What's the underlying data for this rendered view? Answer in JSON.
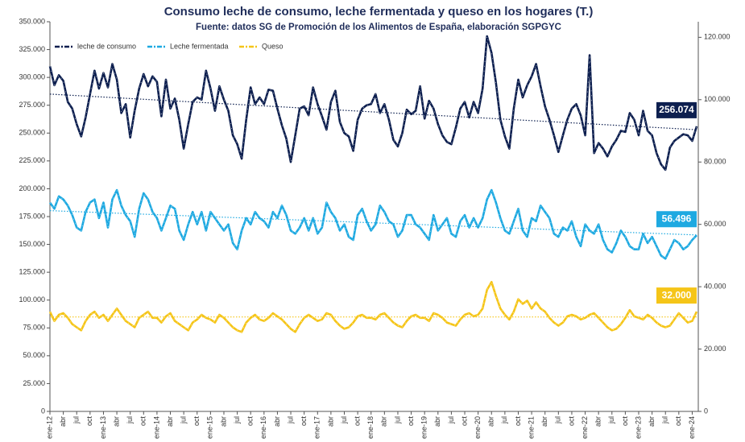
{
  "chart_data": {
    "type": "line",
    "title": "Consumo leche de consumo, leche fermentada y queso en los hogares (T.)",
    "subtitle": "Fuente: datos SG de Promoción de los Alimentos de España, elaboración SGPGYC",
    "categories": [
      "ene-12",
      null,
      null,
      "abr",
      null,
      null,
      "jul",
      null,
      null,
      "oct",
      null,
      null,
      "ene-13",
      null,
      null,
      "abr",
      null,
      null,
      "jul",
      null,
      null,
      "oct",
      null,
      null,
      "ene-14",
      null,
      null,
      "abr",
      null,
      null,
      "jul",
      null,
      null,
      "oct",
      null,
      null,
      "ene-15",
      null,
      null,
      "abr",
      null,
      null,
      "jul",
      null,
      null,
      "oct",
      null,
      null,
      "ene-16",
      null,
      null,
      "abr",
      null,
      null,
      "jul",
      null,
      null,
      "oct",
      null,
      null,
      "ene-17",
      null,
      null,
      "abr",
      null,
      null,
      "jul",
      null,
      null,
      "oct",
      null,
      null,
      "ene-18",
      null,
      null,
      "abr",
      null,
      null,
      "jul",
      null,
      null,
      "oct",
      null,
      null,
      "ene-19",
      null,
      null,
      "abr",
      null,
      null,
      "jul",
      null,
      null,
      "oct",
      null,
      null,
      "ene-20",
      null,
      null,
      "abr",
      null,
      null,
      "jul",
      null,
      null,
      "oct",
      null,
      null,
      "ene-21",
      null,
      null,
      "abr",
      null,
      null,
      "jul",
      null,
      null,
      "oct",
      null,
      null,
      "ene-22",
      null,
      null,
      "abr",
      null,
      null,
      "jul",
      null,
      null,
      "oct",
      null,
      null,
      "ene-23",
      null,
      null,
      "abr",
      null,
      null,
      "jul",
      null,
      null,
      "oct",
      null,
      null,
      "ene-24",
      null
    ],
    "ylim": [
      0,
      350000
    ],
    "yticks": [
      {
        "value": 0,
        "label": "0"
      },
      {
        "value": 25000,
        "label": "25.000"
      },
      {
        "value": 50000,
        "label": "50.000"
      },
      {
        "value": 75000,
        "label": "75.000"
      },
      {
        "value": 100000,
        "label": "100.000"
      },
      {
        "value": 125000,
        "label": "125.000"
      },
      {
        "value": 150000,
        "label": "150.000"
      },
      {
        "value": 175000,
        "label": "175.000"
      },
      {
        "value": 200000,
        "label": "200.000"
      },
      {
        "value": 225000,
        "label": "225.000"
      },
      {
        "value": 250000,
        "label": "250.000"
      },
      {
        "value": 275000,
        "label": "275.000"
      },
      {
        "value": 300000,
        "label": "300.000"
      },
      {
        "value": 325000,
        "label": "325.000"
      },
      {
        "value": 350000,
        "label": "350.000"
      }
    ],
    "y2lim": [
      0,
      125000
    ],
    "y2ticks": [
      {
        "value": 0,
        "label": "0"
      },
      {
        "value": 20000,
        "label": "20.000"
      },
      {
        "value": 40000,
        "label": "40.000"
      },
      {
        "value": 60000,
        "label": "60.000"
      },
      {
        "value": 80000,
        "label": "80.000"
      },
      {
        "value": 100000,
        "label": "100.000"
      },
      {
        "value": 120000,
        "label": "120.000"
      }
    ],
    "legend": "top-left",
    "series": [
      {
        "name": "leche de consumo",
        "color": "#0d1f4f",
        "axis": "y",
        "trend": [
          285000,
          253000
        ],
        "values": [
          310000,
          293000,
          302000,
          297000,
          278000,
          272000,
          258000,
          247000,
          264000,
          285000,
          306000,
          290000,
          304000,
          291000,
          312000,
          298000,
          268000,
          276000,
          246000,
          270000,
          290000,
          303000,
          292000,
          301000,
          296000,
          265000,
          298000,
          272000,
          281000,
          262000,
          236000,
          258000,
          278000,
          282000,
          280000,
          306000,
          290000,
          270000,
          292000,
          280000,
          270000,
          248000,
          240000,
          227000,
          262000,
          291000,
          276000,
          282000,
          276000,
          289000,
          288000,
          272000,
          257000,
          245000,
          224000,
          248000,
          272000,
          274000,
          266000,
          291000,
          276000,
          265000,
          253000,
          278000,
          288000,
          260000,
          250000,
          247000,
          234000,
          262000,
          272000,
          275000,
          276000,
          285000,
          268000,
          276000,
          262000,
          244000,
          238000,
          250000,
          271000,
          267000,
          270000,
          292000,
          263000,
          279000,
          272000,
          258000,
          248000,
          242000,
          240000,
          255000,
          272000,
          278000,
          264000,
          278000,
          268000,
          290000,
          337000,
          322000,
          295000,
          262000,
          247000,
          236000,
          272000,
          298000,
          282000,
          293000,
          301000,
          312000,
          292000,
          274000,
          262000,
          248000,
          233000,
          248000,
          262000,
          272000,
          276000,
          266000,
          248000,
          320000,
          232000,
          241000,
          236000,
          229000,
          238000,
          244000,
          252000,
          251000,
          268000,
          262000,
          248000,
          270000,
          252000,
          248000,
          232000,
          222000,
          217000,
          237000,
          243000,
          246000,
          249000,
          248000,
          243000,
          256074
        ],
        "value_labels": [
          null,
          null,
          null,
          null,
          null,
          null,
          null,
          null,
          null,
          null,
          null,
          null,
          null,
          null,
          null,
          null,
          null,
          null,
          null,
          null,
          null,
          null,
          null,
          null,
          null,
          null,
          null,
          null,
          null,
          null,
          null,
          null,
          null,
          null,
          null,
          null,
          null,
          null,
          null,
          null,
          null,
          null,
          null,
          null,
          null,
          null,
          null,
          null,
          null,
          null,
          null,
          null,
          null,
          null,
          null,
          null,
          null,
          null,
          null,
          null,
          null,
          null,
          null,
          null,
          null,
          null,
          null,
          null,
          null,
          null,
          null,
          null,
          null,
          null,
          null,
          null,
          null,
          null,
          null,
          null,
          null,
          null,
          null,
          null,
          null,
          null,
          null,
          null,
          null,
          null,
          null,
          null,
          null,
          null,
          null,
          null,
          null,
          null,
          null,
          null,
          null,
          null,
          null,
          null,
          null,
          null,
          null,
          null,
          null,
          null,
          null,
          null,
          null,
          null,
          null,
          null,
          null,
          null,
          null,
          null,
          null,
          null,
          null,
          null,
          null,
          null,
          null,
          null,
          null,
          null,
          null,
          null,
          null,
          null,
          null,
          null,
          null,
          null,
          null,
          null,
          null,
          null,
          null,
          null,
          null,
          "256.074"
        ]
      },
      {
        "name": "Leche fermentada",
        "color": "#1ea9e1",
        "axis": "y2",
        "trend": [
          64400,
          56600
        ],
        "values": [
          67000,
          65000,
          69000,
          68000,
          66000,
          63000,
          59000,
          58000,
          64000,
          67000,
          68000,
          62000,
          67000,
          59000,
          68000,
          71000,
          66000,
          63000,
          61000,
          56000,
          65000,
          70000,
          68000,
          64000,
          62000,
          58000,
          62000,
          66000,
          65000,
          58000,
          55000,
          60000,
          64000,
          60000,
          64000,
          58000,
          64000,
          62000,
          60000,
          58000,
          60000,
          54000,
          52000,
          58000,
          62000,
          60000,
          64000,
          62000,
          61000,
          59000,
          64000,
          62000,
          66000,
          63000,
          58000,
          57000,
          59000,
          62000,
          58000,
          62000,
          57000,
          59000,
          67000,
          64000,
          62000,
          58000,
          60000,
          56000,
          55000,
          63000,
          65000,
          61000,
          58000,
          60000,
          66000,
          64000,
          61000,
          60000,
          56000,
          58000,
          63000,
          63000,
          60000,
          59000,
          57000,
          55000,
          63000,
          58000,
          60000,
          62000,
          57000,
          56000,
          61000,
          63000,
          59000,
          62000,
          59000,
          62000,
          68000,
          71000,
          67000,
          62000,
          58000,
          57000,
          61000,
          65000,
          58000,
          56000,
          62000,
          61000,
          66000,
          64000,
          62000,
          57000,
          56000,
          59000,
          58000,
          61000,
          56000,
          53000,
          60000,
          58000,
          57000,
          60000,
          55000,
          52000,
          51000,
          54000,
          58000,
          56000,
          53000,
          52000,
          52000,
          57000,
          54000,
          56000,
          53000,
          50000,
          49000,
          52000,
          55000,
          54000,
          52000,
          53000,
          55000,
          56496
        ],
        "value_labels": [
          null,
          null,
          null,
          null,
          null,
          null,
          null,
          null,
          null,
          null,
          null,
          null,
          null,
          null,
          null,
          null,
          null,
          null,
          null,
          null,
          null,
          null,
          null,
          null,
          null,
          null,
          null,
          null,
          null,
          null,
          null,
          null,
          null,
          null,
          null,
          null,
          null,
          null,
          null,
          null,
          null,
          null,
          null,
          null,
          null,
          null,
          null,
          null,
          null,
          null,
          null,
          null,
          null,
          null,
          null,
          null,
          null,
          null,
          null,
          null,
          null,
          null,
          null,
          null,
          null,
          null,
          null,
          null,
          null,
          null,
          null,
          null,
          null,
          null,
          null,
          null,
          null,
          null,
          null,
          null,
          null,
          null,
          null,
          null,
          null,
          null,
          null,
          null,
          null,
          null,
          null,
          null,
          null,
          null,
          null,
          null,
          null,
          null,
          null,
          null,
          null,
          null,
          null,
          null,
          null,
          null,
          null,
          null,
          null,
          null,
          null,
          null,
          null,
          null,
          null,
          null,
          null,
          null,
          null,
          null,
          null,
          null,
          null,
          null,
          null,
          null,
          null,
          null,
          null,
          null,
          null,
          null,
          null,
          null,
          null,
          null,
          null,
          null,
          null,
          null,
          null,
          null,
          null,
          null,
          null,
          "56.496"
        ]
      },
      {
        "name": "Queso",
        "color": "#f5c518",
        "axis": "y2",
        "trend": [
          30300,
          30300
        ],
        "values": [
          32000,
          29000,
          31000,
          31500,
          30000,
          28000,
          27000,
          26000,
          29000,
          31000,
          32000,
          30000,
          31000,
          29000,
          31000,
          33000,
          31000,
          29000,
          28000,
          27000,
          30000,
          31000,
          32000,
          30000,
          30000,
          28500,
          30500,
          31500,
          29000,
          28000,
          27000,
          26000,
          28500,
          29500,
          31000,
          30000,
          29500,
          28500,
          31000,
          30000,
          28500,
          27000,
          26000,
          25500,
          28500,
          30000,
          31000,
          29500,
          29000,
          30000,
          31500,
          30500,
          29500,
          28000,
          26500,
          25500,
          28000,
          30000,
          31000,
          30000,
          29000,
          29500,
          31500,
          31000,
          29000,
          27500,
          26500,
          27000,
          28500,
          30500,
          31000,
          30000,
          30000,
          29500,
          31000,
          31500,
          30000,
          28500,
          27500,
          27000,
          29000,
          30500,
          31000,
          30000,
          30000,
          29000,
          31500,
          31000,
          30000,
          28500,
          28000,
          27500,
          29500,
          31000,
          31500,
          30500,
          31000,
          33000,
          39000,
          41500,
          37000,
          33000,
          31000,
          29500,
          32000,
          36000,
          34500,
          35500,
          33000,
          35000,
          33000,
          32000,
          30000,
          28500,
          27500,
          28500,
          30500,
          31000,
          30500,
          29500,
          30000,
          31000,
          31500,
          30000,
          28500,
          27000,
          26000,
          26500,
          28000,
          30000,
          32500,
          30500,
          30000,
          29500,
          31000,
          30000,
          28500,
          27500,
          27000,
          27500,
          29500,
          31500,
          30000,
          28500,
          29000,
          32000
        ],
        "value_labels": [
          null,
          null,
          null,
          null,
          null,
          null,
          null,
          null,
          null,
          null,
          null,
          null,
          null,
          null,
          null,
          null,
          null,
          null,
          null,
          null,
          null,
          null,
          null,
          null,
          null,
          null,
          null,
          null,
          null,
          null,
          null,
          null,
          null,
          null,
          null,
          null,
          null,
          null,
          null,
          null,
          null,
          null,
          null,
          null,
          null,
          null,
          null,
          null,
          null,
          null,
          null,
          null,
          null,
          null,
          null,
          null,
          null,
          null,
          null,
          null,
          null,
          null,
          null,
          null,
          null,
          null,
          null,
          null,
          null,
          null,
          null,
          null,
          null,
          null,
          null,
          null,
          null,
          null,
          null,
          null,
          null,
          null,
          null,
          null,
          null,
          null,
          null,
          null,
          null,
          null,
          null,
          null,
          null,
          null,
          null,
          null,
          null,
          null,
          null,
          null,
          null,
          null,
          null,
          null,
          null,
          null,
          null,
          null,
          null,
          null,
          null,
          null,
          null,
          null,
          null,
          null,
          null,
          null,
          null,
          null,
          null,
          null,
          null,
          null,
          null,
          null,
          null,
          null,
          null,
          null,
          null,
          null,
          null,
          null,
          null,
          null,
          null,
          null,
          null,
          null,
          null,
          null,
          null,
          null,
          null,
          "32.000"
        ]
      }
    ]
  }
}
